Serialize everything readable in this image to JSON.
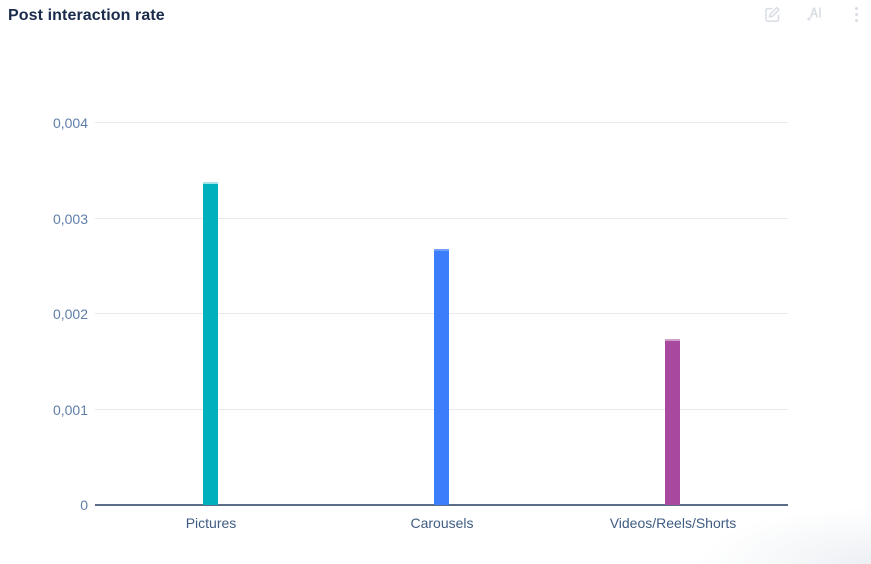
{
  "header": {
    "title": "Post interaction rate"
  },
  "toolbar": {
    "icons": [
      "edit-icon",
      "ai-annotate-icon",
      "kebab-menu-icon"
    ]
  },
  "colors": {
    "title": "#1a2b4c",
    "icon": "#d8dde4",
    "grid": "#e6eaef",
    "axis": "#5b6e87",
    "ytick": "#5f7ea8",
    "xlabel": "#3f5c82"
  },
  "chart_data": {
    "type": "bar",
    "title": "Post interaction rate",
    "categories": [
      "Pictures",
      "Carousels",
      "Videos/Reels/Shorts"
    ],
    "values": [
      0.00338,
      0.00268,
      0.00174
    ],
    "bar_colors": [
      "#00b0bc",
      "#3b7dfa",
      "#a8489f"
    ],
    "bar_cap_colors": [
      "#a5e2e7",
      "#6f9efb",
      "#cf9fc9"
    ],
    "xlabel": "",
    "ylabel": "",
    "ylim": [
      0,
      0.004
    ],
    "yticks": [
      0,
      0.001,
      0.002,
      0.003,
      0.004
    ],
    "ytick_labels": [
      "0",
      "0,001",
      "0,002",
      "0,003",
      "0,004"
    ],
    "grid": true,
    "legend": false
  }
}
